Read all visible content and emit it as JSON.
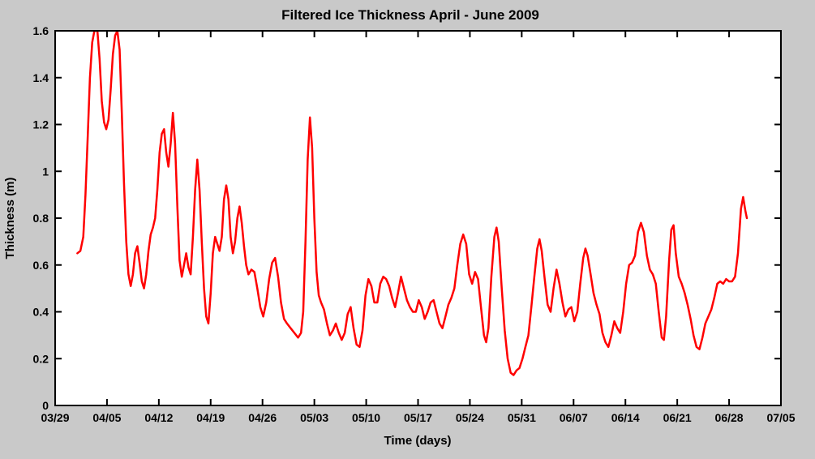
{
  "figure": {
    "background_color": "#c9c9c9",
    "plot_background": "#ffffff",
    "frame_color": "#000000"
  },
  "chart_data": {
    "type": "line",
    "title": "Filtered Ice Thickness April - June 2009",
    "xlabel": "Time (days)",
    "ylabel": "Thickness (m)",
    "grid": false,
    "legend": "none",
    "line_color": "#ff0000",
    "line_width": 2.5,
    "xlim_days": [
      0,
      98
    ],
    "ylim": [
      0,
      1.6
    ],
    "x_tick_days": [
      0,
      7,
      14,
      21,
      28,
      35,
      42,
      49,
      56,
      63,
      70,
      77,
      84,
      91,
      98
    ],
    "x_tick_labels": [
      "03/29",
      "04/05",
      "04/12",
      "04/19",
      "04/26",
      "05/03",
      "05/10",
      "05/17",
      "05/24",
      "05/31",
      "06/07",
      "06/14",
      "06/21",
      "06/28",
      "07/05"
    ],
    "y_ticks": [
      0,
      0.2,
      0.4,
      0.6,
      0.8,
      1.0,
      1.2,
      1.4,
      1.6
    ],
    "y_tick_labels": [
      "0",
      "0.2",
      "0.4",
      "0.6",
      "0.8",
      "1",
      "1.2",
      "1.4",
      "1.6"
    ],
    "series": [
      {
        "name": "filtered ice thickness",
        "points": [
          [
            3.0,
            0.65
          ],
          [
            3.4,
            0.66
          ],
          [
            3.8,
            0.72
          ],
          [
            4.1,
            0.9
          ],
          [
            4.4,
            1.15
          ],
          [
            4.7,
            1.4
          ],
          [
            5.0,
            1.55
          ],
          [
            5.3,
            1.6
          ],
          [
            5.7,
            1.6
          ],
          [
            6.0,
            1.48
          ],
          [
            6.3,
            1.3
          ],
          [
            6.6,
            1.21
          ],
          [
            6.9,
            1.18
          ],
          [
            7.2,
            1.22
          ],
          [
            7.5,
            1.35
          ],
          [
            7.8,
            1.5
          ],
          [
            8.1,
            1.58
          ],
          [
            8.4,
            1.6
          ],
          [
            8.7,
            1.52
          ],
          [
            9.0,
            1.25
          ],
          [
            9.3,
            0.95
          ],
          [
            9.6,
            0.7
          ],
          [
            9.9,
            0.56
          ],
          [
            10.2,
            0.51
          ],
          [
            10.5,
            0.56
          ],
          [
            10.8,
            0.65
          ],
          [
            11.1,
            0.68
          ],
          [
            11.4,
            0.61
          ],
          [
            11.7,
            0.53
          ],
          [
            12.0,
            0.5
          ],
          [
            12.3,
            0.56
          ],
          [
            12.6,
            0.66
          ],
          [
            12.9,
            0.73
          ],
          [
            13.2,
            0.76
          ],
          [
            13.5,
            0.8
          ],
          [
            13.8,
            0.92
          ],
          [
            14.1,
            1.08
          ],
          [
            14.4,
            1.16
          ],
          [
            14.7,
            1.18
          ],
          [
            15.0,
            1.08
          ],
          [
            15.3,
            1.02
          ],
          [
            15.6,
            1.12
          ],
          [
            15.9,
            1.25
          ],
          [
            16.2,
            1.12
          ],
          [
            16.5,
            0.85
          ],
          [
            16.8,
            0.62
          ],
          [
            17.1,
            0.55
          ],
          [
            17.4,
            0.6
          ],
          [
            17.7,
            0.65
          ],
          [
            18.0,
            0.59
          ],
          [
            18.3,
            0.56
          ],
          [
            18.6,
            0.72
          ],
          [
            18.9,
            0.92
          ],
          [
            19.2,
            1.05
          ],
          [
            19.5,
            0.92
          ],
          [
            19.8,
            0.7
          ],
          [
            20.1,
            0.5
          ],
          [
            20.4,
            0.38
          ],
          [
            20.7,
            0.35
          ],
          [
            21.0,
            0.48
          ],
          [
            21.3,
            0.65
          ],
          [
            21.6,
            0.72
          ],
          [
            21.9,
            0.69
          ],
          [
            22.2,
            0.66
          ],
          [
            22.5,
            0.72
          ],
          [
            22.8,
            0.88
          ],
          [
            23.1,
            0.94
          ],
          [
            23.4,
            0.88
          ],
          [
            23.7,
            0.72
          ],
          [
            24.0,
            0.65
          ],
          [
            24.3,
            0.7
          ],
          [
            24.6,
            0.8
          ],
          [
            24.9,
            0.85
          ],
          [
            25.2,
            0.78
          ],
          [
            25.5,
            0.68
          ],
          [
            25.8,
            0.6
          ],
          [
            26.1,
            0.56
          ],
          [
            26.5,
            0.58
          ],
          [
            26.9,
            0.57
          ],
          [
            27.3,
            0.5
          ],
          [
            27.7,
            0.42
          ],
          [
            28.1,
            0.38
          ],
          [
            28.5,
            0.44
          ],
          [
            28.9,
            0.54
          ],
          [
            29.3,
            0.61
          ],
          [
            29.7,
            0.63
          ],
          [
            30.1,
            0.55
          ],
          [
            30.5,
            0.44
          ],
          [
            30.9,
            0.37
          ],
          [
            31.3,
            0.35
          ],
          [
            31.8,
            0.33
          ],
          [
            32.3,
            0.31
          ],
          [
            32.8,
            0.29
          ],
          [
            33.2,
            0.31
          ],
          [
            33.5,
            0.4
          ],
          [
            33.8,
            0.7
          ],
          [
            34.1,
            1.05
          ],
          [
            34.4,
            1.23
          ],
          [
            34.7,
            1.1
          ],
          [
            35.0,
            0.8
          ],
          [
            35.3,
            0.57
          ],
          [
            35.6,
            0.47
          ],
          [
            35.9,
            0.44
          ],
          [
            36.3,
            0.41
          ],
          [
            36.7,
            0.35
          ],
          [
            37.1,
            0.3
          ],
          [
            37.5,
            0.32
          ],
          [
            37.9,
            0.35
          ],
          [
            38.3,
            0.31
          ],
          [
            38.7,
            0.28
          ],
          [
            39.1,
            0.31
          ],
          [
            39.5,
            0.39
          ],
          [
            39.9,
            0.42
          ],
          [
            40.3,
            0.33
          ],
          [
            40.7,
            0.26
          ],
          [
            41.1,
            0.25
          ],
          [
            41.5,
            0.32
          ],
          [
            41.9,
            0.47
          ],
          [
            42.3,
            0.54
          ],
          [
            42.7,
            0.51
          ],
          [
            43.1,
            0.44
          ],
          [
            43.5,
            0.44
          ],
          [
            43.9,
            0.52
          ],
          [
            44.3,
            0.55
          ],
          [
            44.7,
            0.54
          ],
          [
            45.1,
            0.51
          ],
          [
            45.5,
            0.46
          ],
          [
            45.9,
            0.42
          ],
          [
            46.3,
            0.48
          ],
          [
            46.7,
            0.55
          ],
          [
            47.1,
            0.5
          ],
          [
            47.5,
            0.45
          ],
          [
            47.9,
            0.42
          ],
          [
            48.3,
            0.4
          ],
          [
            48.7,
            0.4
          ],
          [
            49.1,
            0.45
          ],
          [
            49.5,
            0.42
          ],
          [
            49.9,
            0.37
          ],
          [
            50.3,
            0.4
          ],
          [
            50.7,
            0.44
          ],
          [
            51.1,
            0.45
          ],
          [
            51.5,
            0.4
          ],
          [
            51.9,
            0.35
          ],
          [
            52.3,
            0.33
          ],
          [
            52.7,
            0.38
          ],
          [
            53.1,
            0.43
          ],
          [
            53.5,
            0.46
          ],
          [
            53.9,
            0.5
          ],
          [
            54.3,
            0.6
          ],
          [
            54.7,
            0.69
          ],
          [
            55.1,
            0.73
          ],
          [
            55.5,
            0.69
          ],
          [
            55.9,
            0.56
          ],
          [
            56.3,
            0.52
          ],
          [
            56.7,
            0.57
          ],
          [
            57.1,
            0.54
          ],
          [
            57.5,
            0.42
          ],
          [
            57.9,
            0.3
          ],
          [
            58.2,
            0.27
          ],
          [
            58.5,
            0.33
          ],
          [
            58.9,
            0.55
          ],
          [
            59.3,
            0.72
          ],
          [
            59.6,
            0.76
          ],
          [
            59.9,
            0.7
          ],
          [
            60.3,
            0.5
          ],
          [
            60.7,
            0.32
          ],
          [
            61.1,
            0.2
          ],
          [
            61.5,
            0.14
          ],
          [
            61.9,
            0.13
          ],
          [
            62.3,
            0.15
          ],
          [
            62.7,
            0.16
          ],
          [
            63.1,
            0.2
          ],
          [
            63.5,
            0.25
          ],
          [
            63.9,
            0.3
          ],
          [
            64.3,
            0.42
          ],
          [
            64.7,
            0.55
          ],
          [
            65.1,
            0.67
          ],
          [
            65.4,
            0.71
          ],
          [
            65.7,
            0.66
          ],
          [
            66.1,
            0.54
          ],
          [
            66.5,
            0.43
          ],
          [
            66.9,
            0.4
          ],
          [
            67.3,
            0.5
          ],
          [
            67.7,
            0.58
          ],
          [
            68.1,
            0.52
          ],
          [
            68.5,
            0.44
          ],
          [
            68.9,
            0.38
          ],
          [
            69.3,
            0.41
          ],
          [
            69.7,
            0.42
          ],
          [
            70.1,
            0.36
          ],
          [
            70.5,
            0.4
          ],
          [
            70.9,
            0.52
          ],
          [
            71.3,
            0.63
          ],
          [
            71.6,
            0.67
          ],
          [
            71.9,
            0.64
          ],
          [
            72.3,
            0.56
          ],
          [
            72.7,
            0.48
          ],
          [
            73.1,
            0.43
          ],
          [
            73.5,
            0.39
          ],
          [
            73.9,
            0.31
          ],
          [
            74.3,
            0.27
          ],
          [
            74.7,
            0.25
          ],
          [
            75.1,
            0.3
          ],
          [
            75.5,
            0.36
          ],
          [
            75.9,
            0.33
          ],
          [
            76.3,
            0.31
          ],
          [
            76.7,
            0.4
          ],
          [
            77.1,
            0.52
          ],
          [
            77.5,
            0.6
          ],
          [
            77.9,
            0.61
          ],
          [
            78.3,
            0.64
          ],
          [
            78.7,
            0.74
          ],
          [
            79.1,
            0.78
          ],
          [
            79.5,
            0.74
          ],
          [
            79.9,
            0.64
          ],
          [
            80.3,
            0.58
          ],
          [
            80.7,
            0.56
          ],
          [
            81.1,
            0.52
          ],
          [
            81.5,
            0.4
          ],
          [
            81.9,
            0.29
          ],
          [
            82.2,
            0.28
          ],
          [
            82.5,
            0.38
          ],
          [
            82.9,
            0.62
          ],
          [
            83.2,
            0.75
          ],
          [
            83.5,
            0.77
          ],
          [
            83.8,
            0.65
          ],
          [
            84.2,
            0.55
          ],
          [
            84.6,
            0.52
          ],
          [
            85.0,
            0.48
          ],
          [
            85.4,
            0.43
          ],
          [
            85.8,
            0.37
          ],
          [
            86.2,
            0.3
          ],
          [
            86.6,
            0.25
          ],
          [
            87.0,
            0.24
          ],
          [
            87.4,
            0.29
          ],
          [
            87.8,
            0.35
          ],
          [
            88.2,
            0.38
          ],
          [
            88.6,
            0.41
          ],
          [
            89.0,
            0.46
          ],
          [
            89.4,
            0.52
          ],
          [
            89.8,
            0.53
          ],
          [
            90.2,
            0.52
          ],
          [
            90.6,
            0.54
          ],
          [
            91.0,
            0.53
          ],
          [
            91.4,
            0.53
          ],
          [
            91.8,
            0.55
          ],
          [
            92.2,
            0.65
          ],
          [
            92.6,
            0.84
          ],
          [
            92.9,
            0.89
          ],
          [
            93.2,
            0.83
          ],
          [
            93.4,
            0.8
          ]
        ]
      }
    ]
  }
}
